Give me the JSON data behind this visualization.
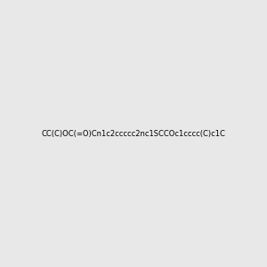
{
  "smiles": "CC(C)OC(=O)Cn1c2ccccc2nc1SCCOc1cccc(C)c1C",
  "image_size": 300,
  "background_color": "#e8e8e8",
  "title": ""
}
